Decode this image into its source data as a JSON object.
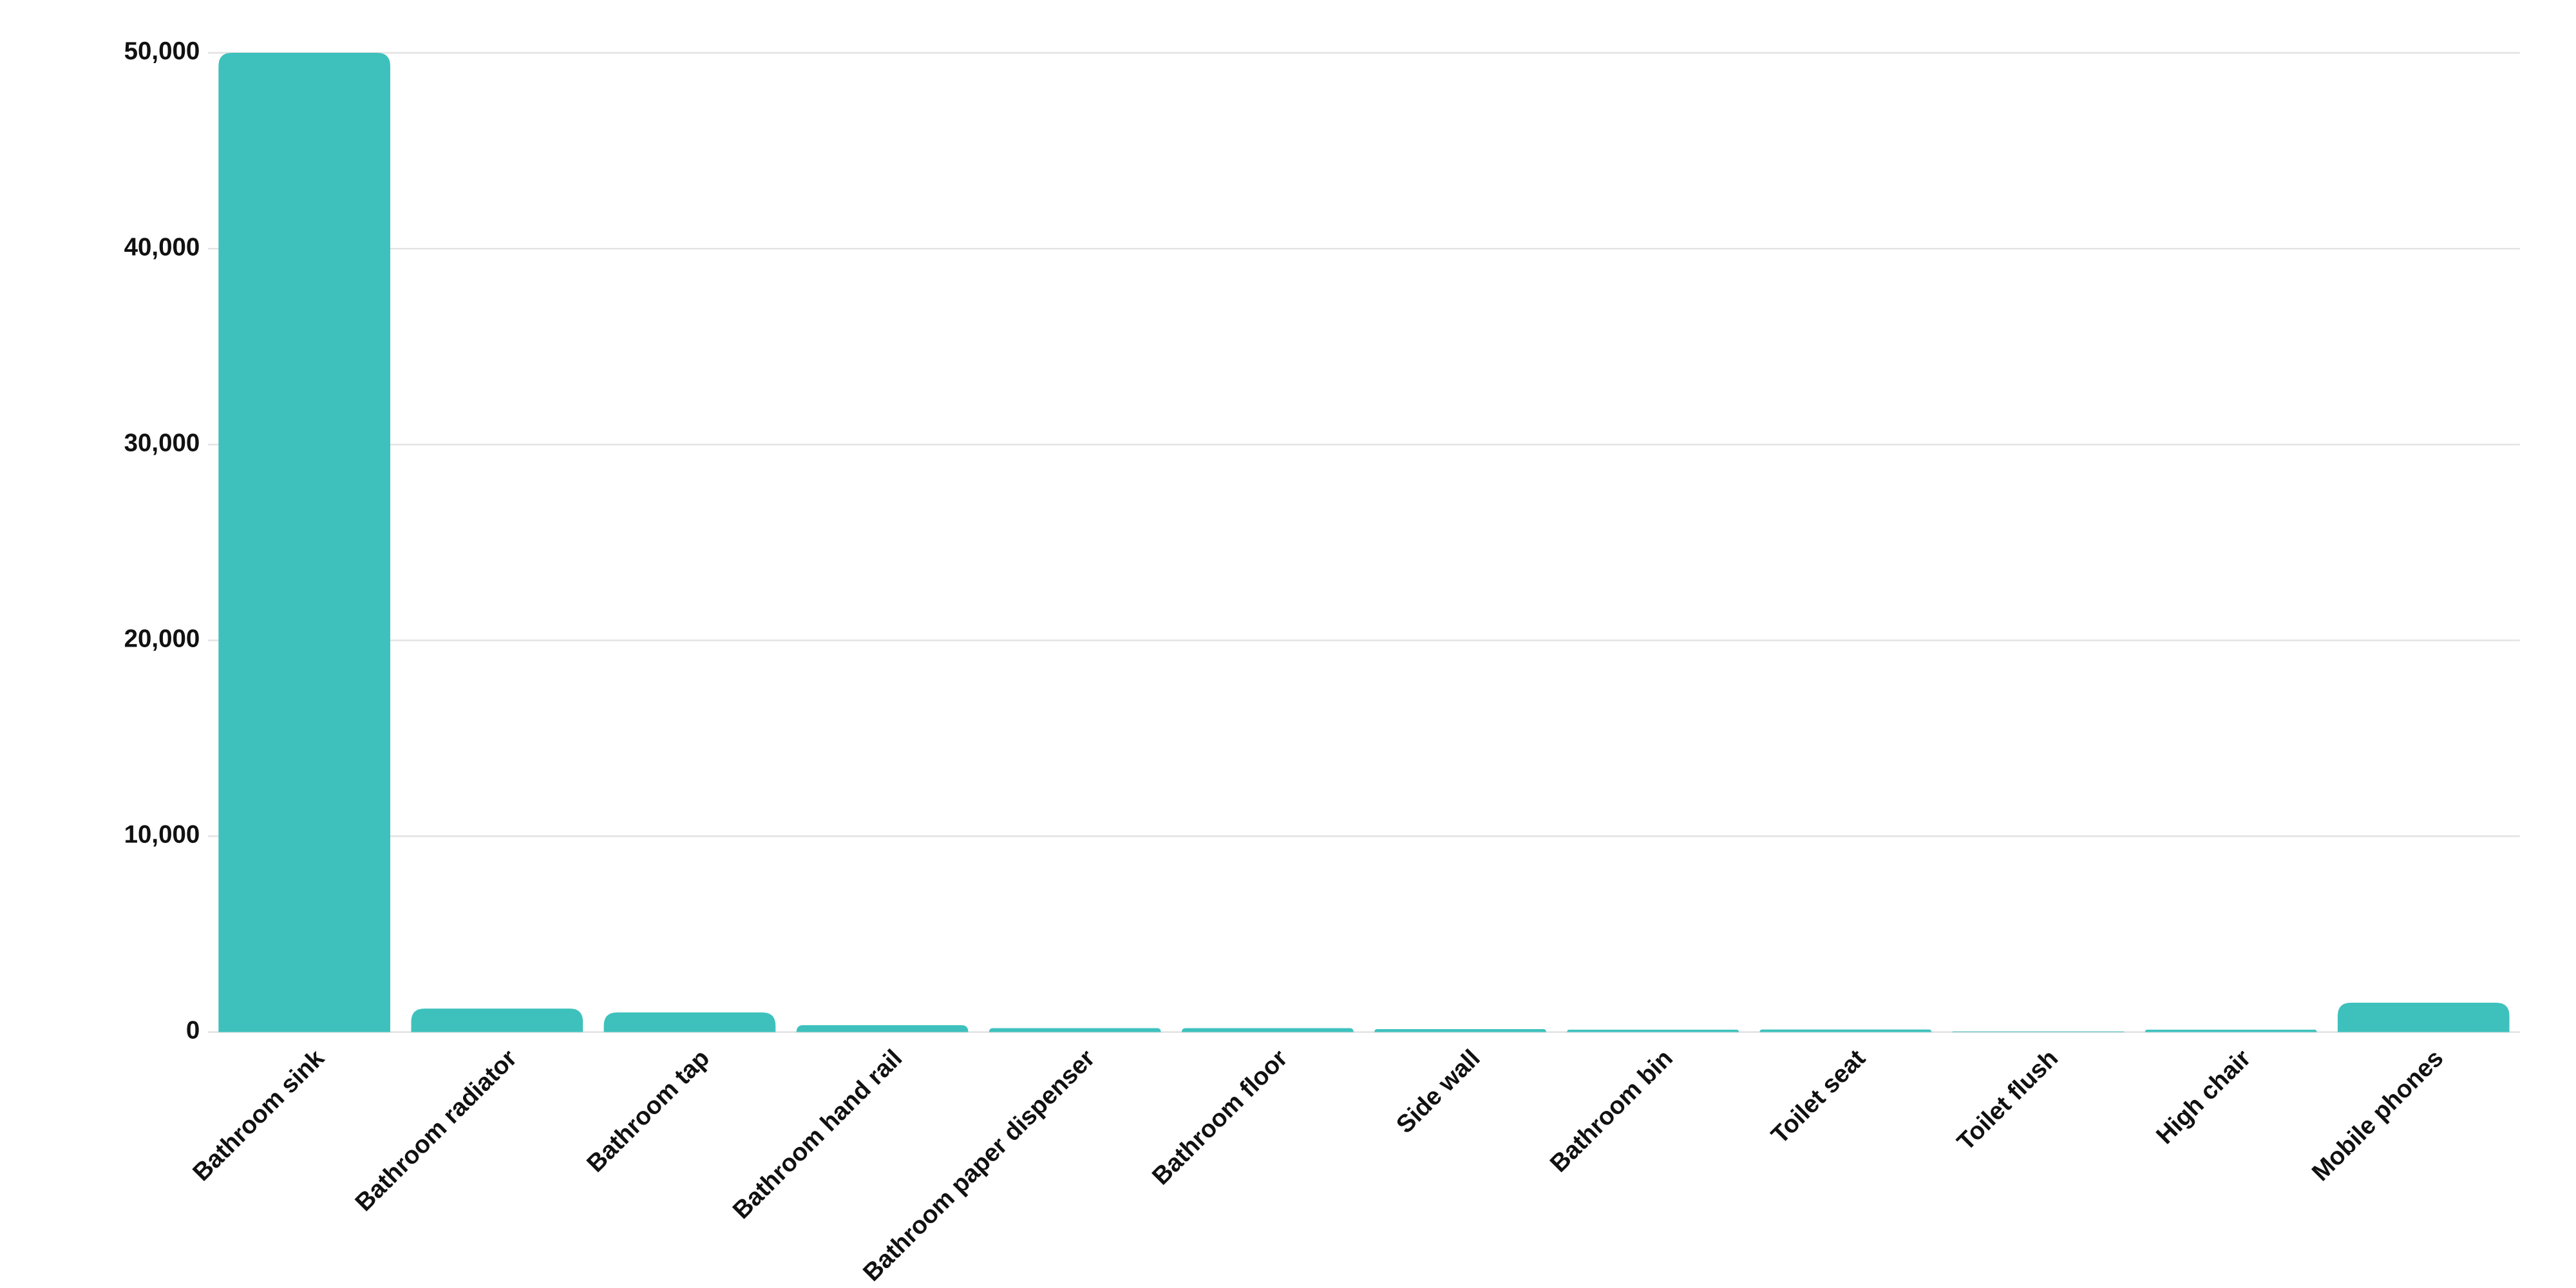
{
  "chart_data": {
    "type": "bar",
    "categories": [
      "Bathroom sink",
      "Bathroom radiator",
      "Bathroom tap",
      "Bathroom hand rail",
      "Bathroom paper dispenser",
      "Bathroom floor",
      "Side wall",
      "Bathroom bin",
      "Toilet seat",
      "Toilet flush",
      "High chair",
      "Mobile phones"
    ],
    "values": [
      50000,
      1200,
      1000,
      350,
      200,
      200,
      150,
      120,
      130,
      30,
      120,
      1500
    ],
    "color": "#3ec1bd",
    "ylim": [
      0,
      50000
    ],
    "yticks": [
      0,
      {
        "value": 10000,
        "label": "10,000"
      },
      {
        "value": 20000,
        "label": "20,000"
      },
      {
        "value": 30000,
        "label": "30,000"
      },
      {
        "value": 40000,
        "label": "40,000"
      },
      {
        "value": 50000,
        "label": "50,000"
      }
    ],
    "grid": true
  }
}
